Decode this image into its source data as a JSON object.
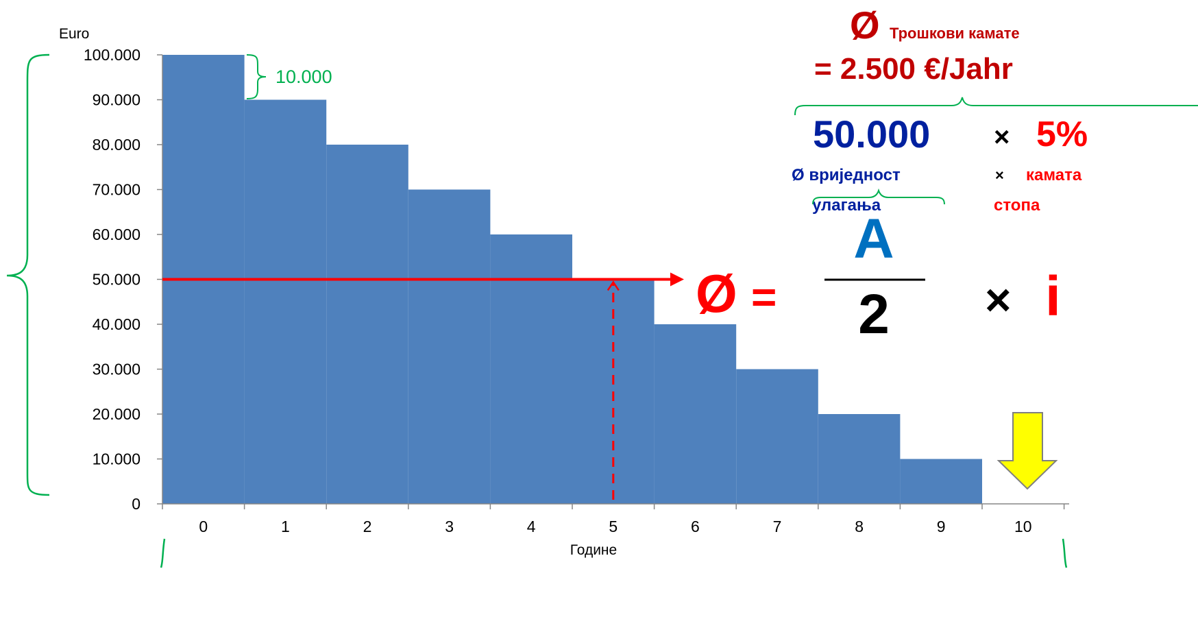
{
  "chart_data": {
    "type": "bar",
    "ylabel": "Euro",
    "xlabel": "Године",
    "categories": [
      "0",
      "1",
      "2",
      "3",
      "4",
      "5",
      "6",
      "7",
      "8",
      "9",
      "10"
    ],
    "values": [
      100000,
      90000,
      80000,
      70000,
      60000,
      50000,
      40000,
      30000,
      20000,
      10000,
      0
    ],
    "yticks": [
      "0",
      "10.000",
      "20.000",
      "30.000",
      "40.000",
      "50.000",
      "60.000",
      "70.000",
      "80.000",
      "90.000",
      "100.000"
    ],
    "ylim": [
      0,
      100000
    ],
    "grid": false,
    "bar_color": "#4f81bd",
    "average_value": 50000,
    "average_year": 5,
    "step_value": 10000
  },
  "annotations": {
    "step_label": "10.000",
    "avg_symbol": "Ø",
    "avg_equals": "=",
    "numerator": "A",
    "denominator": "2",
    "times": "×",
    "rate_symbol": "i",
    "cost_symbol": "Ø",
    "cost_title": "Трошкови камате",
    "cost_result": "= 2.500 €/Jahr",
    "avg_value_label": "50.000",
    "avg_value_caption_1": "Ø вриједност",
    "avg_value_caption_2": "улагања",
    "rate_times": "×",
    "rate_value": "5%",
    "rate_caption_times": "×",
    "rate_caption_1": "камата",
    "rate_caption_2": "стопа"
  },
  "colors": {
    "red": "#ff0000",
    "dark_red": "#c00000",
    "navy": "#00209f",
    "green": "#00b050",
    "yellow": "#ffff00",
    "axis": "#868686"
  }
}
